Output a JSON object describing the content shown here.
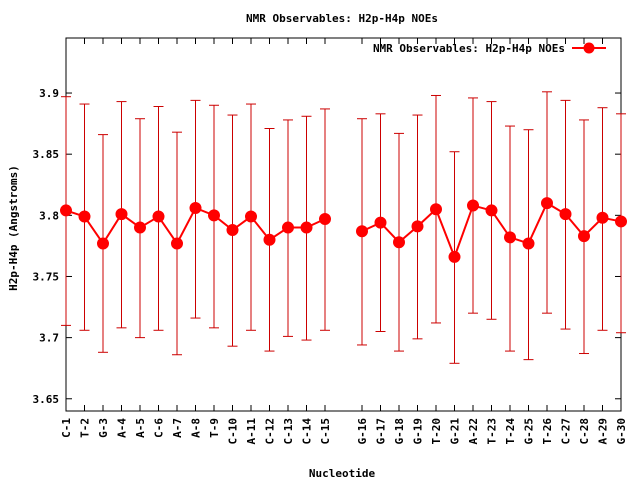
{
  "chart_data": {
    "type": "line",
    "title": "NMR Observables: H2p-H4p NOEs",
    "xlabel": "Nucleotide",
    "ylabel": "H2p-H4p (Angstroms)",
    "ylim": [
      3.64,
      3.945
    ],
    "yticks": [
      3.65,
      3.7,
      3.75,
      3.8,
      3.85,
      3.9
    ],
    "ytick_labels": [
      "3.65",
      "3.7",
      "3.75",
      "3.8",
      "3.85",
      "3.9"
    ],
    "grid": false,
    "legend_position": "top-right",
    "series_color": "#ff0000",
    "error_color": "#cc0000",
    "categories": [
      "C-1",
      "T-2",
      "G-3",
      "A-4",
      "A-5",
      "C-6",
      "A-7",
      "A-8",
      "T-9",
      "C-10",
      "A-11",
      "C-12",
      "C-13",
      "C-14",
      "C-15",
      "G-16",
      "G-17",
      "G-18",
      "G-19",
      "T-20",
      "G-21",
      "A-22",
      "T-23",
      "T-24",
      "G-25",
      "T-26",
      "C-27",
      "C-28",
      "A-29",
      "G-30"
    ],
    "category_positions": [
      1,
      2,
      3,
      4,
      5,
      6,
      7,
      8,
      9,
      10,
      11,
      12,
      13,
      14,
      15,
      17,
      18,
      19,
      20,
      21,
      22,
      23,
      24,
      25,
      26,
      27,
      28,
      29,
      30,
      31
    ],
    "x_range": [
      1,
      31
    ],
    "series": [
      {
        "name": "NMR Observables: H2p-H4p NOEs",
        "values": [
          3.804,
          3.799,
          3.777,
          3.801,
          3.79,
          3.799,
          3.777,
          3.806,
          3.8,
          3.788,
          3.799,
          3.78,
          3.79,
          3.79,
          3.797,
          3.787,
          3.794,
          3.778,
          3.791,
          3.805,
          3.766,
          3.808,
          3.804,
          3.782,
          3.777,
          3.81,
          3.801,
          3.783,
          3.798,
          3.795
        ],
        "err_low": [
          3.71,
          3.706,
          3.688,
          3.708,
          3.7,
          3.706,
          3.686,
          3.716,
          3.708,
          3.693,
          3.706,
          3.689,
          3.701,
          3.698,
          3.706,
          3.694,
          3.705,
          3.689,
          3.699,
          3.712,
          3.679,
          3.72,
          3.715,
          3.689,
          3.682,
          3.72,
          3.707,
          3.687,
          3.706,
          3.704
        ],
        "err_high": [
          3.897,
          3.891,
          3.866,
          3.893,
          3.879,
          3.889,
          3.868,
          3.894,
          3.89,
          3.882,
          3.891,
          3.871,
          3.878,
          3.881,
          3.887,
          3.879,
          3.883,
          3.867,
          3.882,
          3.898,
          3.852,
          3.896,
          3.893,
          3.873,
          3.87,
          3.901,
          3.894,
          3.878,
          3.888,
          3.883
        ]
      }
    ]
  }
}
